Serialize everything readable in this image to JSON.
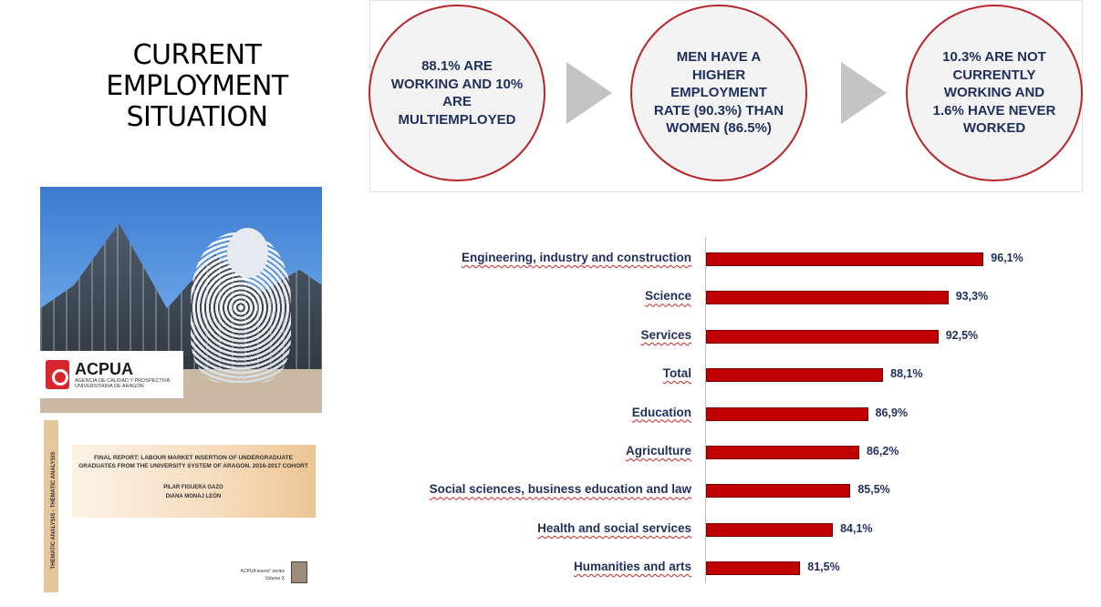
{
  "title": {
    "line1": "CURRENT",
    "line2": "EMPLOYMENT",
    "line3": "SITUATION"
  },
  "summary": [
    "88.1% ARE WORKING AND 10% ARE MULTIEMPLOYED",
    "MEN HAVE A HIGHER EMPLOYMENT RATE (90.3%) THAN WOMEN (86.5%)",
    "10.3% ARE NOT CURRENTLY WORKING AND 1.6% HAVE NEVER WORKED"
  ],
  "cover": {
    "logo_name": "ACPUA",
    "logo_subtitle": "AGENCIA DE CALIDAD Y PROSPECTIVA UNIVERSITARIA DE ARAGÓN",
    "spine_text": "THEMATIC ANALYSIS - THEMATIC ANALYSIS",
    "report_title": "FINAL REPORT: LABOUR MARKET INSERTION OF UNDERGRADUATE GRADUATES FROM THE UNIVERSITY SYSTEM OF ARAGON. 2016-2017 COHORT",
    "author1": "PILAR FIGUERA GAZO",
    "author2": "DIANA MONAJ LEÓN",
    "series_line1": "ACPUA learns\" series",
    "series_line2": "Volume X"
  },
  "colors": {
    "accent": "#c00000",
    "text_dark": "#1f2f5c",
    "circle_border": "#b8262b"
  },
  "chart_data": {
    "type": "bar",
    "orientation": "horizontal",
    "categories": [
      "Engineering, industry and construction",
      "Science",
      "Services",
      "Total",
      "Education",
      "Agriculture",
      "Social sciences, business education and law",
      "Health and social services",
      "Humanities and arts"
    ],
    "values": [
      96.1,
      93.3,
      92.5,
      88.1,
      86.9,
      86.2,
      85.5,
      84.1,
      81.5
    ],
    "value_labels": [
      "96,1%",
      "93,3%",
      "92,5%",
      "88,1%",
      "86,9%",
      "86,2%",
      "85,5%",
      "84,1%",
      "81,5%"
    ],
    "xlim": [
      74,
      100
    ],
    "grid": false,
    "legend": "none"
  }
}
